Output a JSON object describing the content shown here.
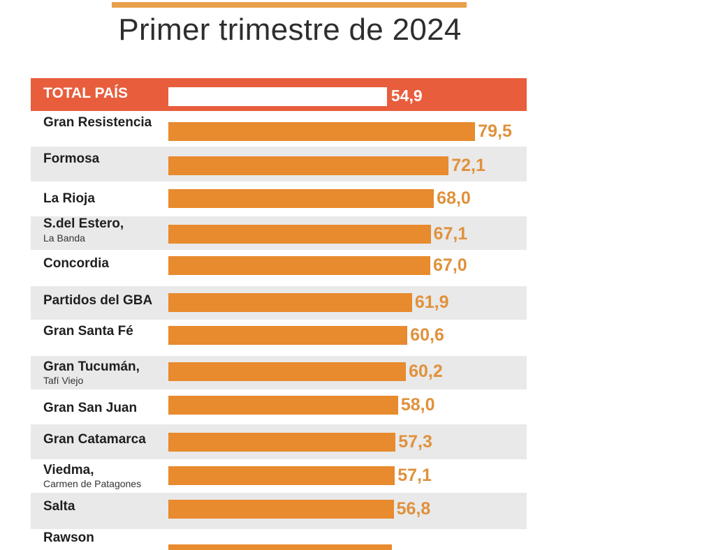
{
  "title": "Primer trimestre de 2024",
  "chart_data": {
    "type": "bar",
    "orientation": "horizontal",
    "title": "Primer trimestre de 2024",
    "xlabel": "",
    "ylabel": "",
    "total": {
      "label": "TOTAL PAÍS",
      "value": 54.9,
      "value_label": "54,9"
    },
    "categories": [
      "Gran Resistencia",
      "Formosa",
      "La Rioja",
      "S.del Estero,",
      "Concordia",
      "Partidos del GBA",
      "Gran Santa Fé",
      "Gran Tucumán,",
      "Gran San Juan",
      "Gran Catamarca",
      "Viedma,",
      "Salta",
      "Rawson"
    ],
    "sublabels": [
      "",
      "",
      "",
      "La Banda",
      "",
      "",
      "",
      "Tafí Viejo",
      "",
      "",
      "Carmen de Patagones",
      "",
      ""
    ],
    "values": [
      79.5,
      72.1,
      68.0,
      67.1,
      67.0,
      61.9,
      60.6,
      60.2,
      58.0,
      57.3,
      57.1,
      56.8,
      null
    ],
    "value_labels": [
      "79,5",
      "72,1",
      "68,0",
      "67,1",
      "67,0",
      "61,9",
      "60,6",
      "60,2",
      "58,0",
      "57,3",
      "57,1",
      "56,8",
      ""
    ],
    "colors": {
      "bar": "#e88a2e",
      "header_bg": "#e85d3c",
      "header_bar": "#ffffff",
      "value_text": "#e0913c",
      "alt_row": "#e9e9e9",
      "top_rule": "#e8a04a"
    }
  }
}
